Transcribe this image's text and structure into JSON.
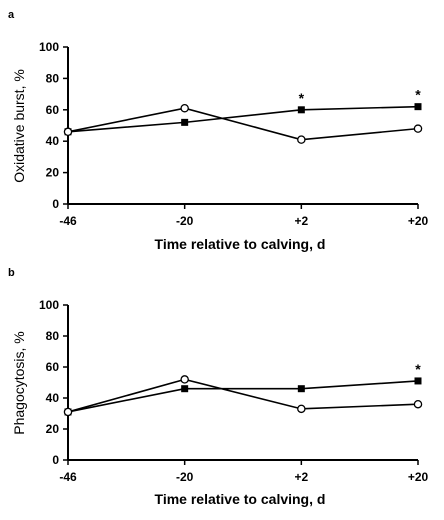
{
  "chart_data": [
    {
      "panel": "a",
      "type": "line",
      "ylabel": "Oxidative burst, %",
      "xlabel": "Time relative to calving, d",
      "categories": [
        "-46",
        "-20",
        "+2",
        "+20"
      ],
      "x": [
        -46,
        -20,
        2,
        20
      ],
      "ylim": [
        0,
        100
      ],
      "yticks": [
        "0",
        "20",
        "40",
        "60",
        "80",
        "100"
      ],
      "series": [
        {
          "marker": "filled-square",
          "values": [
            46,
            52,
            60,
            62
          ]
        },
        {
          "marker": "open-circle",
          "values": [
            46,
            61,
            41,
            48
          ]
        }
      ],
      "annotations": [
        {
          "text": "*",
          "x": 2
        },
        {
          "text": "*",
          "x": 20
        }
      ]
    },
    {
      "panel": "b",
      "type": "line",
      "ylabel": "Phagocytosis, %",
      "xlabel": "Time relative to calving, d",
      "categories": [
        "-46",
        "-20",
        "+2",
        "+20"
      ],
      "x": [
        -46,
        -20,
        2,
        20
      ],
      "ylim": [
        0,
        100
      ],
      "yticks": [
        "0",
        "20",
        "40",
        "60",
        "80",
        "100"
      ],
      "series": [
        {
          "marker": "filled-square",
          "values": [
            31,
            46,
            46,
            51
          ]
        },
        {
          "marker": "open-circle",
          "values": [
            31,
            52,
            33,
            36
          ]
        }
      ],
      "annotations": [
        {
          "text": "*",
          "x": 20
        }
      ]
    }
  ]
}
